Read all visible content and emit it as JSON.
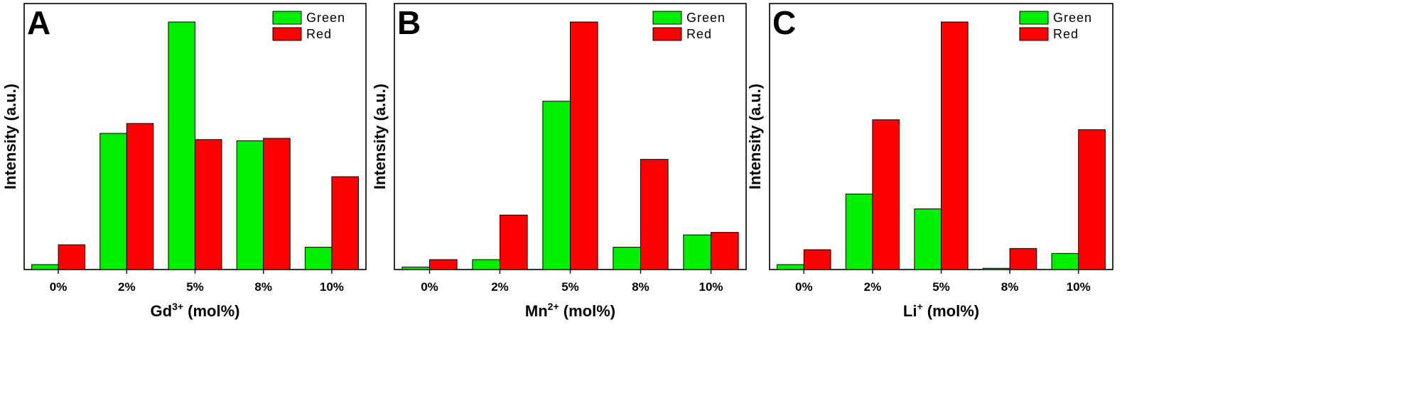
{
  "colors": {
    "green": "#00ee00",
    "red": "#ff0000",
    "axis": "#000000"
  },
  "chart_data": [
    {
      "panel": "A",
      "type": "bar",
      "categories": [
        "0%",
        "2%",
        "5%",
        "8%",
        "10%"
      ],
      "series": [
        {
          "name": "Green",
          "values": [
            2,
            55,
            100,
            52,
            9
          ]
        },
        {
          "name": "Red",
          "values": [
            10,
            59,
            52.5,
            53,
            37.5
          ]
        }
      ],
      "xlabel": {
        "base": "Gd",
        "sup": "3+",
        "suffix": " (mol%)"
      },
      "ylabel": "Intensity (a.u.)",
      "ylim": [
        0,
        100
      ],
      "legend": "top-right"
    },
    {
      "panel": "B",
      "type": "bar",
      "categories": [
        "0%",
        "2%",
        "5%",
        "8%",
        "10%"
      ],
      "series": [
        {
          "name": "Green",
          "values": [
            1,
            4,
            68,
            9,
            14
          ]
        },
        {
          "name": "Red",
          "values": [
            4,
            22,
            100,
            44.5,
            15
          ]
        }
      ],
      "xlabel": {
        "base": "Mn",
        "sup": "2+",
        "suffix": " (mol%)"
      },
      "ylabel": "Intensity (a.u.)",
      "ylim": [
        0,
        100
      ],
      "legend": "top-right"
    },
    {
      "panel": "C",
      "type": "bar",
      "categories": [
        "0%",
        "2%",
        "5%",
        "8%",
        "10%"
      ],
      "series": [
        {
          "name": "Green",
          "values": [
            2,
            30.5,
            24.5,
            0.5,
            6.5
          ]
        },
        {
          "name": "Red",
          "values": [
            8,
            60.5,
            100,
            8.5,
            56.5
          ]
        }
      ],
      "xlabel": {
        "base": "Li",
        "sup": "+",
        "suffix": " (mol%)"
      },
      "ylabel": "Intensity (a.u.)",
      "ylim": [
        0,
        100
      ],
      "legend": "top-right"
    }
  ]
}
